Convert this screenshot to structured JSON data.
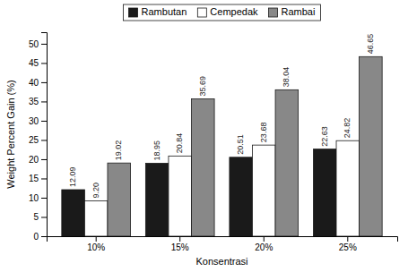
{
  "chart_data": {
    "type": "bar",
    "categories": [
      "10%",
      "15%",
      "20%",
      "25%"
    ],
    "series": [
      {
        "name": "Rambutan",
        "color": "#1a1a1a",
        "values": [
          12.09,
          18.95,
          20.51,
          22.63
        ],
        "value_labels": [
          "12.09",
          "18.95",
          "20.51",
          "22.63"
        ]
      },
      {
        "name": "Cempedak",
        "color": "#ffffff",
        "values": [
          9.2,
          20.84,
          23.68,
          24.82
        ],
        "value_labels": [
          "9.20",
          "20.84",
          "23.68",
          "24.82"
        ]
      },
      {
        "name": "Rambai",
        "color": "#888888",
        "values": [
          19.02,
          35.69,
          38.04,
          46.65
        ],
        "value_labels": [
          "19.02",
          "35.69",
          "38.04",
          "46.65"
        ]
      }
    ],
    "xlabel": "Konsentrasi",
    "ylabel": "Weight Percent Gain (%)",
    "ylim": [
      0,
      53
    ],
    "yticks": [
      0,
      5,
      10,
      15,
      20,
      25,
      30,
      35,
      40,
      45,
      50
    ],
    "data_labels": true,
    "grid": false
  }
}
